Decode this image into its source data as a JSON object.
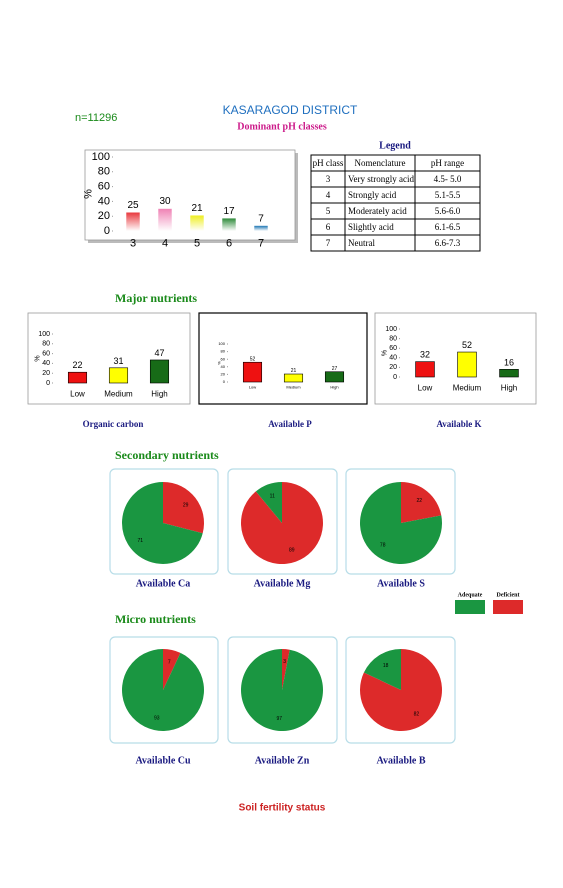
{
  "header": {
    "n": "n=11296",
    "title": "KASARAGOD DISTRICT"
  },
  "legend": {
    "title": "Legend",
    "header": [
      "pH class",
      "Nomenclature",
      "pH range"
    ],
    "rows": [
      [
        "3",
        "Very strongly acid",
        "4.5- 5.0"
      ],
      [
        "4",
        "Strongly acid",
        "5.1-5.5"
      ],
      [
        "5",
        "Moderately acid",
        "5.6-6.0"
      ],
      [
        "6",
        "Slightly acid",
        "6.1-6.5"
      ],
      [
        "7",
        "Neutral",
        "6.6-7.3"
      ]
    ]
  },
  "sections": [
    "Major nutrients",
    "Secondary nutrients",
    "Micro nutrients"
  ],
  "pie_legend": [
    {
      "name": "Adequate",
      "color": "#1a9641"
    },
    {
      "name": "Deficient",
      "color": "#dd2a2a"
    }
  ],
  "footer": "Soil fertility status",
  "chart_data": [
    {
      "type": "bar",
      "title": "Dominant pH classes",
      "categories": [
        "3",
        "4",
        "5",
        "6",
        "7"
      ],
      "values": [
        25,
        30,
        21,
        17,
        7
      ],
      "colors": [
        "#e8383d",
        "#ef82b5",
        "#eeee22",
        "#2e8b3a",
        "#1f77b4"
      ],
      "gradient": true,
      "ylabel": "%",
      "ylim": [
        0,
        100
      ],
      "yticks": [
        0,
        20,
        40,
        60,
        80,
        100
      ]
    },
    {
      "type": "bar",
      "title": "Organic carbon",
      "categories": [
        "Low",
        "Medium",
        "High"
      ],
      "values": [
        22,
        31,
        47
      ],
      "colors": [
        "#ee1111",
        "#ffff00",
        "#176b17"
      ],
      "ylabel": "%",
      "ylim": [
        0,
        100
      ],
      "yticks": [
        0,
        20,
        40,
        60,
        80,
        100
      ]
    },
    {
      "type": "bar",
      "title": "Available  P",
      "categories": [
        "Low",
        "Medium",
        "High"
      ],
      "values": [
        52,
        21,
        27
      ],
      "colors": [
        "#ee1111",
        "#ffff00",
        "#176b17"
      ],
      "ylabel": "%",
      "ylim": [
        0,
        100
      ],
      "yticks": [
        0,
        20,
        40,
        60,
        80,
        100
      ]
    },
    {
      "type": "bar",
      "title": "Available  K",
      "categories": [
        "Low",
        "Medium",
        "High"
      ],
      "values": [
        32,
        52,
        16
      ],
      "colors": [
        "#ee1111",
        "#ffff00",
        "#176b17"
      ],
      "ylabel": "%",
      "ylim": [
        0,
        100
      ],
      "yticks": [
        0,
        20,
        40,
        60,
        80,
        100
      ]
    },
    {
      "type": "pie",
      "title": "Available  Ca",
      "values": [
        29,
        71
      ],
      "colors": [
        "#dd2a2a",
        "#1a9641"
      ]
    },
    {
      "type": "pie",
      "title": "Available  Mg",
      "values": [
        89,
        11
      ],
      "colors": [
        "#dd2a2a",
        "#1a9641"
      ]
    },
    {
      "type": "pie",
      "title": "Available  S",
      "values": [
        22,
        78
      ],
      "colors": [
        "#dd2a2a",
        "#1a9641"
      ]
    },
    {
      "type": "pie",
      "title": "Available Cu",
      "values": [
        7,
        93
      ],
      "colors": [
        "#dd2a2a",
        "#1a9641"
      ]
    },
    {
      "type": "pie",
      "title": "Available  Zn",
      "values": [
        3,
        97
      ],
      "colors": [
        "#dd2a2a",
        "#1a9641"
      ]
    },
    {
      "type": "pie",
      "title": "Available  B",
      "values": [
        82,
        18
      ],
      "colors": [
        "#dd2a2a",
        "#1a9641"
      ]
    }
  ]
}
